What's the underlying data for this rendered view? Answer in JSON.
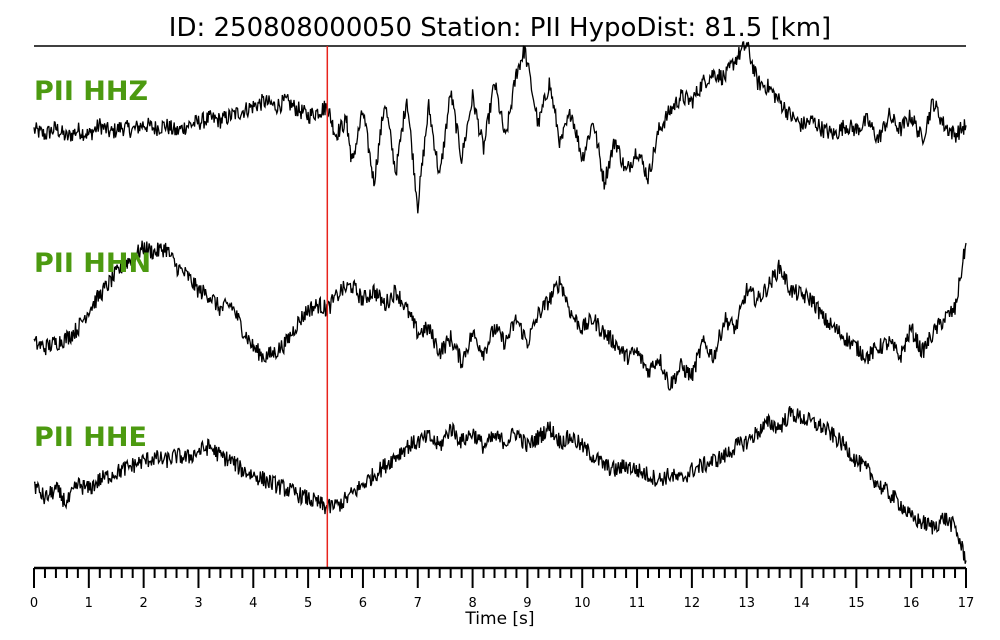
{
  "chart_data": {
    "type": "line",
    "title": "ID: 250808000050   Station: PII   HypoDist:    81.5 [km]",
    "xlabel": "Time [s]",
    "xlim": [
      0,
      17
    ],
    "x_ticks": [
      "0",
      "1",
      "2",
      "3",
      "4",
      "5",
      "6",
      "7",
      "8",
      "9",
      "10",
      "11",
      "12",
      "13",
      "14",
      "15",
      "16",
      "17"
    ],
    "marker": {
      "x": 5.35,
      "color": "#e8231b"
    },
    "label_color": "#4c9a10",
    "trace_color": "#000000",
    "series": [
      {
        "name": "PII HHZ",
        "points": [
          [
            0,
            0.0
          ],
          [
            0.2,
            -0.05
          ],
          [
            0.4,
            0.02
          ],
          [
            0.6,
            -0.08
          ],
          [
            0.8,
            0.0
          ],
          [
            1.0,
            -0.05
          ],
          [
            1.2,
            0.05
          ],
          [
            1.4,
            -0.03
          ],
          [
            1.6,
            0.03
          ],
          [
            1.8,
            0.0
          ],
          [
            2.0,
            0.06
          ],
          [
            2.2,
            0.02
          ],
          [
            2.4,
            0.05
          ],
          [
            2.6,
            -0.02
          ],
          [
            2.8,
            0.05
          ],
          [
            3.0,
            0.08
          ],
          [
            3.2,
            0.12
          ],
          [
            3.4,
            0.1
          ],
          [
            3.6,
            0.15
          ],
          [
            3.8,
            0.2
          ],
          [
            4.0,
            0.25
          ],
          [
            4.2,
            0.3
          ],
          [
            4.4,
            0.25
          ],
          [
            4.6,
            0.3
          ],
          [
            4.8,
            0.22
          ],
          [
            5.0,
            0.15
          ],
          [
            5.2,
            0.2
          ],
          [
            5.35,
            0.25
          ],
          [
            5.5,
            -0.05
          ],
          [
            5.7,
            0.1
          ],
          [
            5.8,
            -0.35
          ],
          [
            6.0,
            0.2
          ],
          [
            6.2,
            -0.55
          ],
          [
            6.4,
            0.3
          ],
          [
            6.6,
            -0.45
          ],
          [
            6.8,
            0.35
          ],
          [
            7.0,
            -0.8
          ],
          [
            7.2,
            0.25
          ],
          [
            7.4,
            -0.5
          ],
          [
            7.6,
            0.4
          ],
          [
            7.8,
            -0.3
          ],
          [
            8.0,
            0.35
          ],
          [
            8.2,
            -0.2
          ],
          [
            8.4,
            0.5
          ],
          [
            8.6,
            -0.1
          ],
          [
            8.8,
            0.6
          ],
          [
            8.95,
            0.85
          ],
          [
            9.2,
            0.05
          ],
          [
            9.4,
            0.5
          ],
          [
            9.6,
            -0.15
          ],
          [
            9.8,
            0.2
          ],
          [
            10.0,
            -0.3
          ],
          [
            10.2,
            0.1
          ],
          [
            10.4,
            -0.55
          ],
          [
            10.6,
            -0.1
          ],
          [
            10.8,
            -0.45
          ],
          [
            11.0,
            -0.2
          ],
          [
            11.2,
            -0.5
          ],
          [
            11.4,
            0.0
          ],
          [
            11.6,
            0.2
          ],
          [
            11.8,
            0.35
          ],
          [
            12.0,
            0.3
          ],
          [
            12.2,
            0.5
          ],
          [
            12.4,
            0.6
          ],
          [
            12.6,
            0.55
          ],
          [
            12.8,
            0.75
          ],
          [
            13.0,
            0.9
          ],
          [
            13.2,
            0.5
          ],
          [
            13.4,
            0.45
          ],
          [
            13.6,
            0.3
          ],
          [
            13.8,
            0.15
          ],
          [
            14.0,
            0.05
          ],
          [
            14.2,
            0.1
          ],
          [
            14.4,
            0.0
          ],
          [
            14.6,
            -0.05
          ],
          [
            14.8,
            0.05
          ],
          [
            15.0,
            0.0
          ],
          [
            15.2,
            0.1
          ],
          [
            15.4,
            -0.1
          ],
          [
            15.6,
            0.15
          ],
          [
            15.8,
            0.0
          ],
          [
            16.0,
            0.15
          ],
          [
            16.2,
            -0.1
          ],
          [
            16.4,
            0.3
          ],
          [
            16.6,
            0.05
          ],
          [
            16.8,
            -0.05
          ],
          [
            17.0,
            0.05
          ]
        ]
      },
      {
        "name": "PII HHN",
        "points": [
          [
            0,
            -0.45
          ],
          [
            0.2,
            -0.5
          ],
          [
            0.4,
            -0.45
          ],
          [
            0.6,
            -0.4
          ],
          [
            0.8,
            -0.3
          ],
          [
            1.0,
            -0.1
          ],
          [
            1.2,
            0.05
          ],
          [
            1.4,
            0.2
          ],
          [
            1.6,
            0.35
          ],
          [
            1.8,
            0.45
          ],
          [
            2.0,
            0.55
          ],
          [
            2.2,
            0.5
          ],
          [
            2.4,
            0.55
          ],
          [
            2.6,
            0.35
          ],
          [
            2.8,
            0.25
          ],
          [
            3.0,
            0.1
          ],
          [
            3.2,
            0.05
          ],
          [
            3.4,
            -0.1
          ],
          [
            3.6,
            -0.05
          ],
          [
            3.8,
            -0.3
          ],
          [
            4.0,
            -0.5
          ],
          [
            4.2,
            -0.6
          ],
          [
            4.4,
            -0.55
          ],
          [
            4.6,
            -0.45
          ],
          [
            4.8,
            -0.25
          ],
          [
            5.0,
            -0.1
          ],
          [
            5.2,
            -0.05
          ],
          [
            5.35,
            -0.1
          ],
          [
            5.6,
            0.1
          ],
          [
            5.8,
            0.15
          ],
          [
            6.0,
            0.0
          ],
          [
            6.2,
            0.1
          ],
          [
            6.4,
            -0.05
          ],
          [
            6.6,
            0.1
          ],
          [
            6.8,
            -0.1
          ],
          [
            7.0,
            -0.35
          ],
          [
            7.2,
            -0.3
          ],
          [
            7.4,
            -0.55
          ],
          [
            7.6,
            -0.4
          ],
          [
            7.8,
            -0.65
          ],
          [
            8.0,
            -0.35
          ],
          [
            8.2,
            -0.55
          ],
          [
            8.4,
            -0.3
          ],
          [
            8.6,
            -0.45
          ],
          [
            8.8,
            -0.2
          ],
          [
            9.0,
            -0.45
          ],
          [
            9.2,
            -0.15
          ],
          [
            9.4,
            0.0
          ],
          [
            9.6,
            0.2
          ],
          [
            9.8,
            -0.15
          ],
          [
            10.0,
            -0.3
          ],
          [
            10.2,
            -0.2
          ],
          [
            10.4,
            -0.35
          ],
          [
            10.6,
            -0.45
          ],
          [
            10.8,
            -0.6
          ],
          [
            11.0,
            -0.55
          ],
          [
            11.2,
            -0.75
          ],
          [
            11.4,
            -0.6
          ],
          [
            11.6,
            -0.9
          ],
          [
            11.8,
            -0.7
          ],
          [
            12.0,
            -0.8
          ],
          [
            12.2,
            -0.45
          ],
          [
            12.4,
            -0.6
          ],
          [
            12.6,
            -0.2
          ],
          [
            12.8,
            -0.3
          ],
          [
            13.0,
            0.1
          ],
          [
            13.2,
            0.0
          ],
          [
            13.4,
            0.15
          ],
          [
            13.6,
            0.35
          ],
          [
            13.8,
            0.1
          ],
          [
            14.0,
            0.05
          ],
          [
            14.2,
            0.0
          ],
          [
            14.4,
            -0.2
          ],
          [
            14.6,
            -0.3
          ],
          [
            14.8,
            -0.4
          ],
          [
            15.0,
            -0.5
          ],
          [
            15.2,
            -0.6
          ],
          [
            15.4,
            -0.5
          ],
          [
            15.6,
            -0.45
          ],
          [
            15.8,
            -0.6
          ],
          [
            16.0,
            -0.3
          ],
          [
            16.2,
            -0.55
          ],
          [
            16.4,
            -0.35
          ],
          [
            16.6,
            -0.2
          ],
          [
            16.8,
            -0.1
          ],
          [
            17.0,
            0.6
          ]
        ]
      },
      {
        "name": "PII HHE",
        "points": [
          [
            0,
            -0.1
          ],
          [
            0.2,
            -0.25
          ],
          [
            0.4,
            -0.15
          ],
          [
            0.6,
            -0.3
          ],
          [
            0.8,
            -0.1
          ],
          [
            1.0,
            -0.15
          ],
          [
            1.2,
            -0.05
          ],
          [
            1.4,
            0.0
          ],
          [
            1.6,
            0.05
          ],
          [
            1.8,
            0.1
          ],
          [
            2.0,
            0.15
          ],
          [
            2.2,
            0.18
          ],
          [
            2.4,
            0.15
          ],
          [
            2.6,
            0.2
          ],
          [
            2.8,
            0.18
          ],
          [
            3.0,
            0.25
          ],
          [
            3.2,
            0.3
          ],
          [
            3.4,
            0.2
          ],
          [
            3.6,
            0.15
          ],
          [
            3.8,
            0.05
          ],
          [
            4.0,
            0.0
          ],
          [
            4.2,
            -0.05
          ],
          [
            4.4,
            -0.1
          ],
          [
            4.6,
            -0.15
          ],
          [
            4.8,
            -0.2
          ],
          [
            5.0,
            -0.25
          ],
          [
            5.2,
            -0.3
          ],
          [
            5.35,
            -0.35
          ],
          [
            5.6,
            -0.3
          ],
          [
            5.8,
            -0.2
          ],
          [
            6.0,
            -0.1
          ],
          [
            6.2,
            0.0
          ],
          [
            6.4,
            0.1
          ],
          [
            6.6,
            0.2
          ],
          [
            6.8,
            0.3
          ],
          [
            7.0,
            0.35
          ],
          [
            7.2,
            0.4
          ],
          [
            7.4,
            0.3
          ],
          [
            7.6,
            0.5
          ],
          [
            7.8,
            0.35
          ],
          [
            8.0,
            0.45
          ],
          [
            8.2,
            0.3
          ],
          [
            8.4,
            0.4
          ],
          [
            8.6,
            0.35
          ],
          [
            8.8,
            0.45
          ],
          [
            9.0,
            0.3
          ],
          [
            9.2,
            0.4
          ],
          [
            9.4,
            0.5
          ],
          [
            9.6,
            0.35
          ],
          [
            9.8,
            0.4
          ],
          [
            10.0,
            0.3
          ],
          [
            10.2,
            0.2
          ],
          [
            10.4,
            0.1
          ],
          [
            10.6,
            0.05
          ],
          [
            10.8,
            0.1
          ],
          [
            11.0,
            0.05
          ],
          [
            11.2,
            0.0
          ],
          [
            11.4,
            -0.05
          ],
          [
            11.6,
            0.0
          ],
          [
            11.8,
            -0.05
          ],
          [
            12.0,
            0.05
          ],
          [
            12.2,
            0.1
          ],
          [
            12.4,
            0.15
          ],
          [
            12.6,
            0.2
          ],
          [
            12.8,
            0.3
          ],
          [
            13.0,
            0.35
          ],
          [
            13.2,
            0.45
          ],
          [
            13.4,
            0.55
          ],
          [
            13.6,
            0.5
          ],
          [
            13.8,
            0.65
          ],
          [
            14.0,
            0.6
          ],
          [
            14.2,
            0.55
          ],
          [
            14.4,
            0.5
          ],
          [
            14.6,
            0.4
          ],
          [
            14.8,
            0.3
          ],
          [
            15.0,
            0.15
          ],
          [
            15.2,
            0.05
          ],
          [
            15.4,
            -0.1
          ],
          [
            15.6,
            -0.2
          ],
          [
            15.8,
            -0.3
          ],
          [
            16.0,
            -0.45
          ],
          [
            16.2,
            -0.5
          ],
          [
            16.4,
            -0.55
          ],
          [
            16.6,
            -0.45
          ],
          [
            16.8,
            -0.55
          ],
          [
            17.0,
            -0.9
          ]
        ]
      }
    ]
  }
}
